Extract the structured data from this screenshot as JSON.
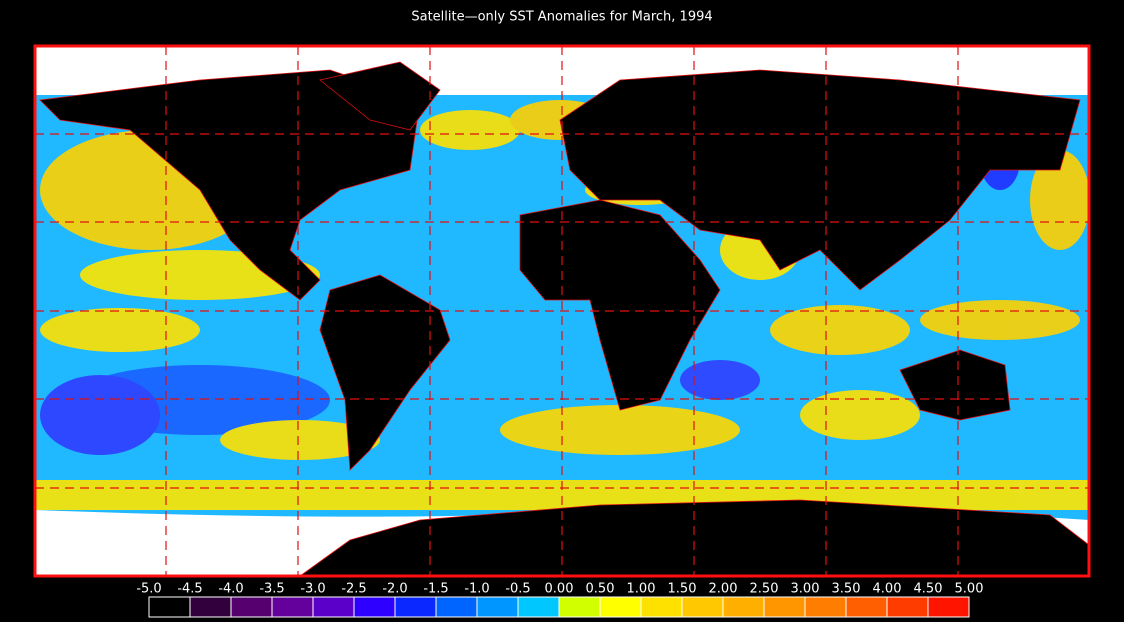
{
  "title": "Satellite—only SST Anomalies for March, 1994",
  "colorbar": {
    "lim": [
      -5,
      5
    ],
    "ticks": [
      {
        "value": -5,
        "label": "-5.0"
      },
      {
        "value": -4.5,
        "label": "-4.5"
      },
      {
        "value": -4,
        "label": "-4.0"
      },
      {
        "value": -3.5,
        "label": "-3.5"
      },
      {
        "value": -3,
        "label": "-3.0"
      },
      {
        "value": -2.5,
        "label": "-2.5"
      },
      {
        "value": -2,
        "label": "-2.0"
      },
      {
        "value": -1.5,
        "label": "-1.5"
      },
      {
        "value": -1,
        "label": "-1.0"
      },
      {
        "value": -0.5,
        "label": "-0.5"
      },
      {
        "value": 0,
        "label": "0.00"
      },
      {
        "value": 0.5,
        "label": "0.50"
      },
      {
        "value": 1,
        "label": "1.00"
      },
      {
        "value": 1.5,
        "label": "1.50"
      },
      {
        "value": 2,
        "label": "2.00"
      },
      {
        "value": 2.5,
        "label": "2.50"
      },
      {
        "value": 3,
        "label": "3.00"
      },
      {
        "value": 3.5,
        "label": "3.50"
      },
      {
        "value": 4,
        "label": "4.00"
      },
      {
        "value": 4.5,
        "label": "4.50"
      },
      {
        "value": 5,
        "label": "5.00"
      }
    ],
    "colors": [
      "#000000",
      "#32003c",
      "#55006e",
      "#64009b",
      "#5a00c8",
      "#2d00ff",
      "#0a28ff",
      "#0064ff",
      "#0096ff",
      "#00c8ff",
      "#d2ff00",
      "#ffff00",
      "#ffe100",
      "#ffc800",
      "#ffaf00",
      "#ff9600",
      "#ff7d00",
      "#ff5f00",
      "#ff3c00",
      "#ff1400"
    ]
  }
}
